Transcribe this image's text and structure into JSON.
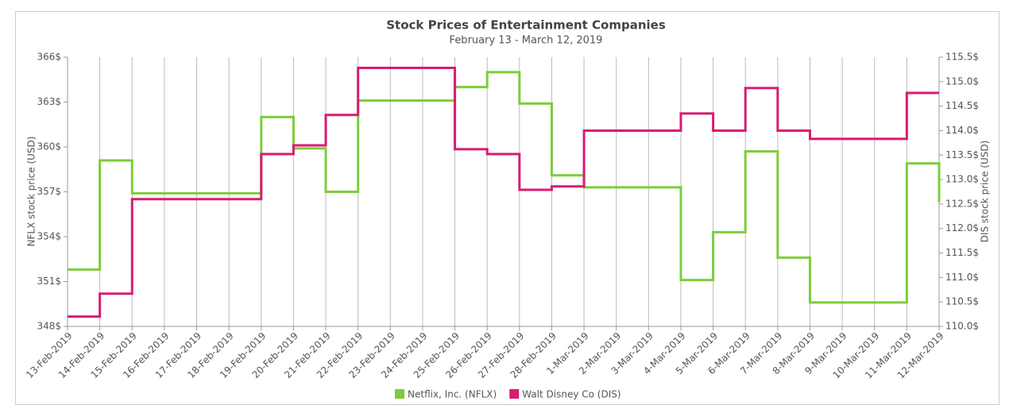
{
  "chart_data": {
    "type": "step",
    "title": "Stock Prices of Entertainment Companies",
    "subtitle": "February 13 - March 12, 2019",
    "ylabel": "NFLX stock price (USD)",
    "y2label": "DIS stock price (USD)",
    "categories": [
      "13-Feb-2019",
      "14-Feb-2019",
      "15-Feb-2019",
      "16-Feb-2019",
      "17-Feb-2019",
      "18-Feb-2019",
      "19-Feb-2019",
      "20-Feb-2019",
      "21-Feb-2019",
      "22-Feb-2019",
      "23-Feb-2019",
      "24-Feb-2019",
      "25-Feb-2019",
      "26-Feb-2019",
      "27-Feb-2019",
      "28-Feb-2019",
      "1-Mar-2019",
      "2-Mar-2019",
      "3-Mar-2019",
      "4-Mar-2019",
      "5-Mar-2019",
      "6-Mar-2019",
      "7-Mar-2019",
      "8-Mar-2019",
      "9-Mar-2019",
      "10-Mar-2019",
      "11-Mar-2019",
      "12-Mar-2019"
    ],
    "series": [
      {
        "name": "Netflix, Inc. (NFLX)",
        "color": "#7dcc3a",
        "axis": "y",
        "values": [
          351.8,
          359.1,
          356.9,
          356.9,
          356.9,
          356.9,
          362.0,
          359.9,
          357.0,
          363.1,
          363.1,
          363.1,
          364.0,
          365.0,
          362.9,
          358.1,
          357.3,
          357.3,
          357.3,
          351.1,
          354.3,
          359.7,
          352.6,
          349.6,
          349.6,
          349.6,
          358.9,
          356.3
        ]
      },
      {
        "name": "Walt Disney Co (DIS)",
        "color": "#d81b72",
        "axis": "y2",
        "values": [
          110.2,
          110.67,
          112.6,
          112.6,
          112.6,
          112.6,
          113.52,
          113.7,
          114.32,
          115.28,
          115.28,
          115.28,
          113.62,
          113.52,
          112.79,
          112.86,
          114.0,
          114.0,
          114.0,
          114.35,
          114.0,
          114.87,
          114.0,
          113.83,
          113.83,
          113.83,
          114.77,
          114.77
        ]
      }
    ],
    "ylim": [
      348,
      366
    ],
    "yticks": [
      {
        "value": 348,
        "label": "348$"
      },
      {
        "value": 351,
        "label": "351$"
      },
      {
        "value": 354,
        "label": "354$"
      },
      {
        "value": 357,
        "label": "357$"
      },
      {
        "value": 360,
        "label": "360$"
      },
      {
        "value": 363,
        "label": "363$"
      },
      {
        "value": 366,
        "label": "366$"
      }
    ],
    "y2lim": [
      110,
      115.5
    ],
    "y2ticks": [
      {
        "value": 110,
        "label": "110.0$"
      },
      {
        "value": 110.5,
        "label": "110.5$"
      },
      {
        "value": 111,
        "label": "111.0$"
      },
      {
        "value": 111.5,
        "label": "111.5$"
      },
      {
        "value": 112,
        "label": "112.0$"
      },
      {
        "value": 112.5,
        "label": "112.5$"
      },
      {
        "value": 113,
        "label": "113.0$"
      },
      {
        "value": 113.5,
        "label": "113.5$"
      },
      {
        "value": 114,
        "label": "114.0$"
      },
      {
        "value": 114.5,
        "label": "114.5$"
      },
      {
        "value": 115,
        "label": "115.0$"
      },
      {
        "value": 115.5,
        "label": "115.5$"
      }
    ],
    "grid": "x",
    "legend": "bottom"
  }
}
